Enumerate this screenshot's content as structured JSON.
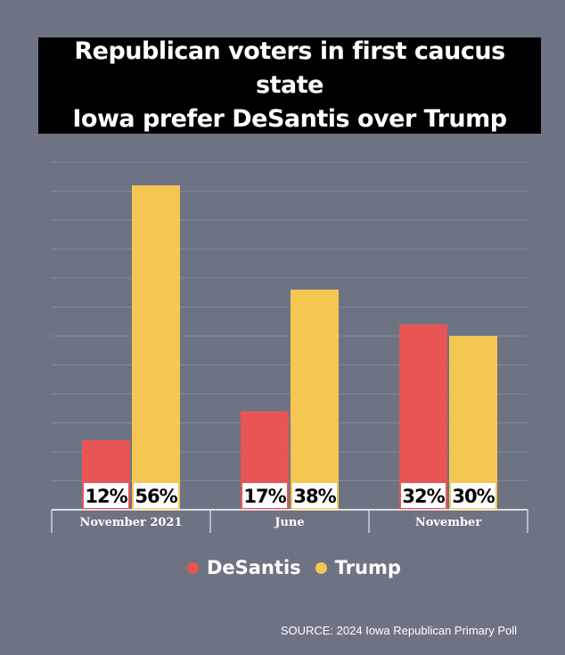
{
  "title": "Republican voters in first caucus state\nIowa prefer DeSantis over Trump",
  "source": "SOURCE: 2024 Iowa Republican Primary Poll",
  "colors": {
    "background": "#6e7384",
    "DeSantis": "#e95555",
    "Trump": "#f4c752",
    "label_bg": "#ffffff"
  },
  "chart_data": {
    "type": "bar",
    "categories": [
      "November 2021",
      "June",
      "November"
    ],
    "series": [
      {
        "name": "DeSantis",
        "values": [
          12,
          17,
          32
        ]
      },
      {
        "name": "Trump",
        "values": [
          56,
          38,
          30
        ]
      }
    ],
    "data_labels": [
      [
        "12%",
        "56%"
      ],
      [
        "17%",
        "38%"
      ],
      [
        "32%",
        "30%"
      ]
    ],
    "ylim": [
      0,
      60
    ],
    "grid": true,
    "legend": "bottom-center"
  }
}
